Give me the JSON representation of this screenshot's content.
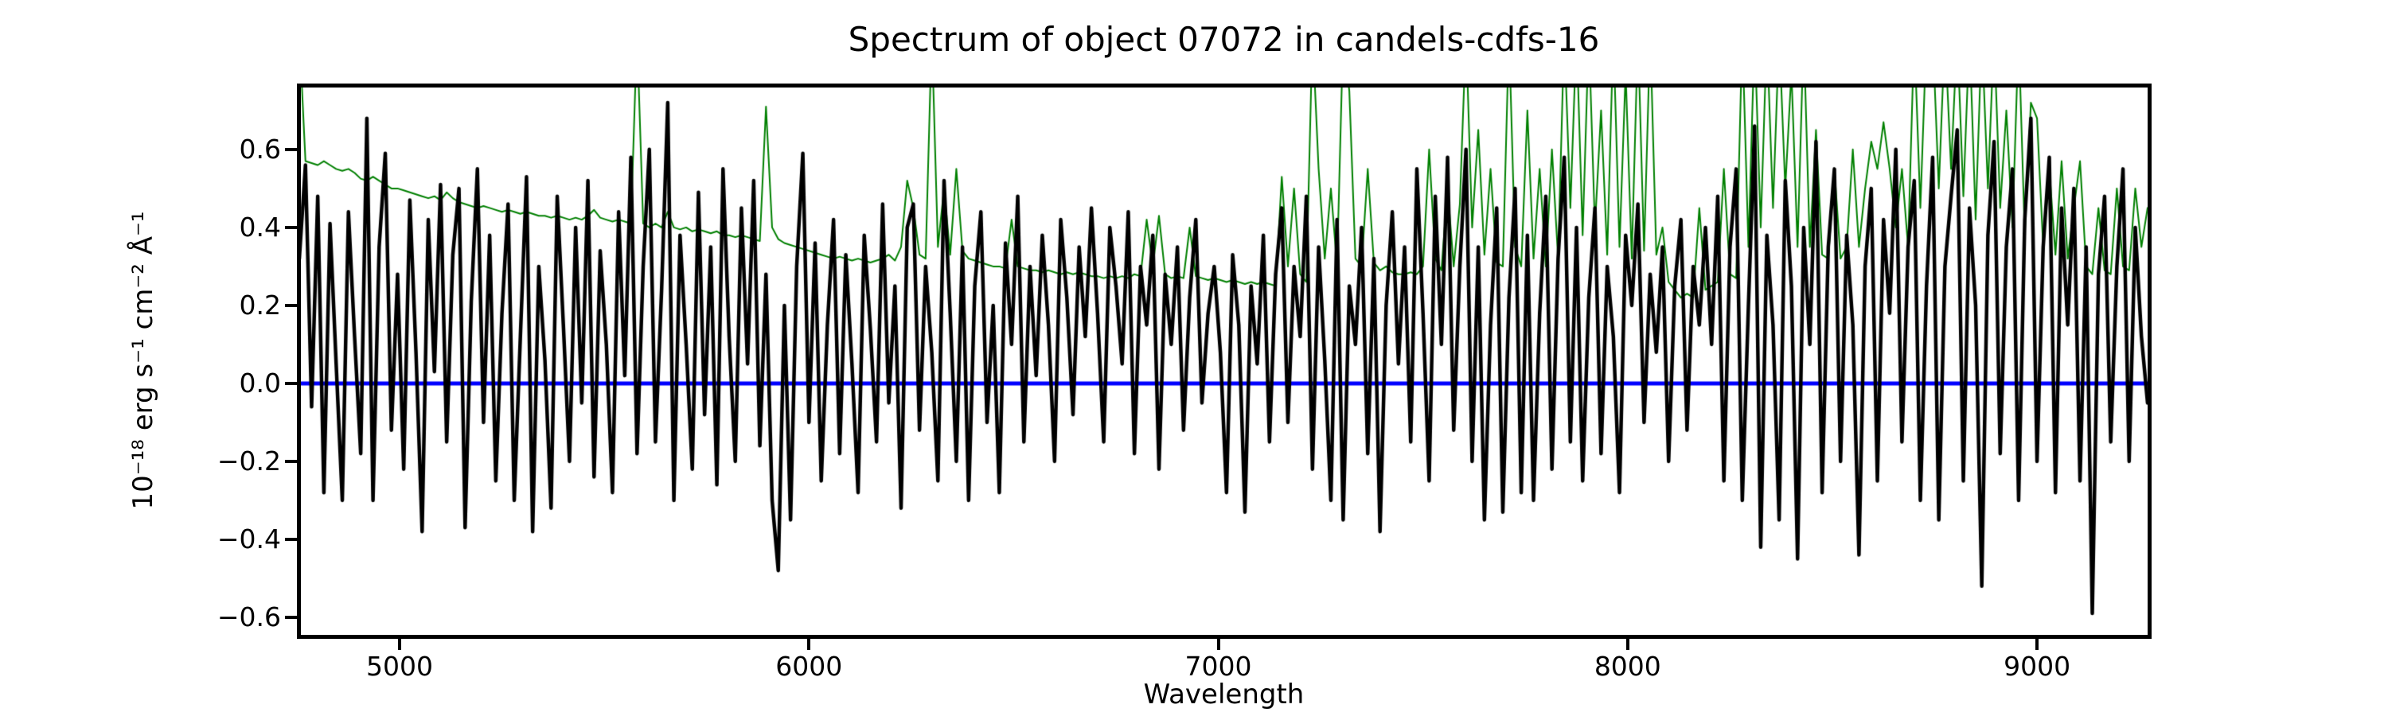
{
  "figure": {
    "title": "Spectrum of object 07072 in candels-cdfs-16",
    "xlabel": "Wavelength",
    "ylabel": "10⁻¹⁸ erg s⁻¹ cm⁻² Å⁻¹"
  },
  "colors": {
    "flux": "#000000",
    "sky_noise": "#008000",
    "zero_line": "#0000ff",
    "background": "#ffffff",
    "text": "#000000"
  },
  "chart_data": {
    "type": "line",
    "title": "Spectrum of object 07072 in candels-cdfs-16",
    "xlabel": "Wavelength",
    "ylabel": "10^-18 erg s^-1 cm^-2 A^-1",
    "grid": false,
    "legend": null,
    "xlim": [
      4753,
      9274
    ],
    "ylim": [
      -0.649,
      0.765
    ],
    "x_ticks": [
      {
        "value": 5000,
        "label": "5000"
      },
      {
        "value": 6000,
        "label": "6000"
      },
      {
        "value": 7000,
        "label": "7000"
      },
      {
        "value": 8000,
        "label": "8000"
      },
      {
        "value": 9000,
        "label": "9000"
      }
    ],
    "y_ticks": [
      {
        "value": 0.6,
        "label": "0.6"
      },
      {
        "value": 0.4,
        "label": "0.4"
      },
      {
        "value": 0.2,
        "label": "0.2"
      },
      {
        "value": 0.0,
        "label": "0.0"
      },
      {
        "value": -0.2,
        "label": "−0.2"
      },
      {
        "value": -0.4,
        "label": "−0.4"
      },
      {
        "value": -0.6,
        "label": "−0.6"
      }
    ],
    "x_start": 4755,
    "x_step": 15,
    "series": [
      {
        "name": "zero-line",
        "color": "#0000ff",
        "linewidth": 5,
        "hline": 0.0
      },
      {
        "name": "sky-noise-spectrum",
        "color": "#008000",
        "linewidth": 2,
        "values": [
          0.9,
          0.57,
          0.565,
          0.56,
          0.57,
          0.56,
          0.55,
          0.545,
          0.55,
          0.54,
          0.525,
          0.52,
          0.53,
          0.52,
          0.51,
          0.5,
          0.5,
          0.495,
          0.49,
          0.485,
          0.48,
          0.475,
          0.48,
          0.47,
          0.49,
          0.475,
          0.465,
          0.46,
          0.455,
          0.45,
          0.455,
          0.45,
          0.445,
          0.44,
          0.445,
          0.44,
          0.435,
          0.44,
          0.435,
          0.43,
          0.43,
          0.425,
          0.43,
          0.425,
          0.42,
          0.425,
          0.42,
          0.43,
          0.445,
          0.425,
          0.42,
          0.415,
          0.42,
          0.415,
          0.41,
          0.9,
          0.41,
          0.4,
          0.41,
          0.4,
          0.44,
          0.4,
          0.395,
          0.4,
          0.39,
          0.395,
          0.39,
          0.385,
          0.39,
          0.38,
          0.38,
          0.375,
          0.38,
          0.375,
          0.37,
          0.365,
          0.71,
          0.4,
          0.37,
          0.36,
          0.355,
          0.35,
          0.345,
          0.34,
          0.335,
          0.33,
          0.325,
          0.32,
          0.325,
          0.32,
          0.315,
          0.32,
          0.315,
          0.31,
          0.315,
          0.32,
          0.33,
          0.315,
          0.35,
          0.52,
          0.45,
          0.33,
          0.32,
          0.9,
          0.35,
          0.5,
          0.33,
          0.55,
          0.34,
          0.32,
          0.315,
          0.31,
          0.305,
          0.3,
          0.3,
          0.295,
          0.42,
          0.3,
          0.295,
          0.29,
          0.29,
          0.285,
          0.29,
          0.285,
          0.28,
          0.285,
          0.28,
          0.285,
          0.28,
          0.275,
          0.275,
          0.27,
          0.275,
          0.27,
          0.275,
          0.27,
          0.28,
          0.275,
          0.42,
          0.3,
          0.43,
          0.28,
          0.27,
          0.275,
          0.27,
          0.4,
          0.275,
          0.27,
          0.265,
          0.27,
          0.265,
          0.26,
          0.265,
          0.26,
          0.255,
          0.26,
          0.255,
          0.26,
          0.255,
          0.25,
          0.53,
          0.3,
          0.5,
          0.28,
          0.26,
          0.9,
          0.55,
          0.32,
          0.5,
          0.3,
          0.9,
          0.75,
          0.32,
          0.3,
          0.55,
          0.31,
          0.29,
          0.3,
          0.285,
          0.28,
          0.28,
          0.285,
          0.28,
          0.3,
          0.6,
          0.32,
          0.29,
          0.5,
          0.3,
          0.46,
          0.9,
          0.4,
          0.65,
          0.33,
          0.55,
          0.31,
          0.3,
          0.9,
          0.35,
          0.3,
          0.7,
          0.32,
          0.55,
          0.3,
          0.6,
          0.32,
          0.9,
          0.45,
          0.9,
          0.38,
          0.9,
          0.4,
          0.7,
          0.33,
          0.9,
          0.35,
          0.8,
          0.32,
          0.9,
          0.34,
          0.9,
          0.33,
          0.4,
          0.26,
          0.24,
          0.22,
          0.23,
          0.22,
          0.45,
          0.24,
          0.25,
          0.26,
          0.55,
          0.28,
          0.27,
          0.9,
          0.35,
          0.9,
          0.4,
          0.9,
          0.45,
          0.9,
          0.5,
          0.8,
          0.35,
          0.9,
          0.35,
          0.65,
          0.33,
          0.32,
          0.55,
          0.32,
          0.35,
          0.6,
          0.35,
          0.5,
          0.62,
          0.55,
          0.67,
          0.55,
          0.4,
          0.55,
          0.35,
          0.9,
          0.45,
          0.9,
          0.9,
          0.5,
          0.9,
          0.55,
          0.9,
          0.48,
          0.9,
          0.42,
          0.9,
          0.5,
          0.9,
          0.45,
          0.7,
          0.4,
          0.9,
          0.38,
          0.72,
          0.68,
          0.35,
          0.55,
          0.33,
          0.57,
          0.32,
          0.45,
          0.57,
          0.3,
          0.28,
          0.45,
          0.29,
          0.28,
          0.5,
          0.3,
          0.29,
          0.5,
          0.35,
          0.45
        ]
      },
      {
        "name": "flux-spectrum",
        "color": "#000000",
        "linewidth": 4.5,
        "values": [
          0.32,
          0.56,
          -0.06,
          0.48,
          -0.28,
          0.41,
          0.05,
          -0.3,
          0.44,
          0.12,
          -0.18,
          0.68,
          -0.3,
          0.35,
          0.59,
          -0.12,
          0.28,
          -0.22,
          0.47,
          0.08,
          -0.38,
          0.42,
          0.03,
          0.51,
          -0.15,
          0.33,
          0.5,
          -0.37,
          0.21,
          0.55,
          -0.1,
          0.38,
          -0.25,
          0.18,
          0.46,
          -0.3,
          0.12,
          0.53,
          -0.38,
          0.3,
          0.06,
          -0.32,
          0.48,
          0.15,
          -0.2,
          0.4,
          -0.05,
          0.52,
          -0.24,
          0.34,
          0.1,
          -0.28,
          0.44,
          0.02,
          0.58,
          -0.18,
          0.3,
          0.6,
          -0.15,
          0.24,
          0.72,
          -0.3,
          0.38,
          0.1,
          -0.22,
          0.49,
          -0.08,
          0.35,
          -0.26,
          0.55,
          0.12,
          -0.2,
          0.45,
          0.05,
          0.52,
          -0.16,
          0.28,
          -0.3,
          -0.48,
          0.2,
          -0.35,
          0.3,
          0.59,
          -0.1,
          0.36,
          -0.25,
          0.15,
          0.42,
          -0.18,
          0.33,
          0.05,
          -0.28,
          0.38,
          0.14,
          -0.15,
          0.46,
          -0.05,
          0.25,
          -0.32,
          0.4,
          0.46,
          -0.12,
          0.3,
          0.08,
          -0.25,
          0.52,
          0.18,
          -0.2,
          0.35,
          -0.3,
          0.25,
          0.44,
          -0.1,
          0.2,
          -0.28,
          0.36,
          0.1,
          0.48,
          -0.15,
          0.3,
          0.02,
          0.38,
          0.15,
          -0.2,
          0.42,
          0.22,
          -0.08,
          0.35,
          0.12,
          0.45,
          0.18,
          -0.15,
          0.4,
          0.25,
          0.05,
          0.44,
          -0.18,
          0.3,
          0.15,
          0.38,
          -0.22,
          0.28,
          0.1,
          0.35,
          -0.12,
          0.22,
          0.42,
          -0.05,
          0.18,
          0.3,
          0.08,
          -0.28,
          0.33,
          0.15,
          -0.33,
          0.25,
          0.05,
          0.38,
          -0.15,
          0.28,
          0.45,
          -0.1,
          0.3,
          0.12,
          0.48,
          -0.22,
          0.35,
          0.06,
          -0.3,
          0.42,
          -0.35,
          0.25,
          0.1,
          0.4,
          -0.18,
          0.32,
          -0.38,
          0.2,
          0.44,
          0.05,
          0.35,
          -0.15,
          0.55,
          0.18,
          -0.25,
          0.48,
          0.1,
          0.58,
          -0.12,
          0.3,
          0.6,
          -0.2,
          0.35,
          -0.35,
          0.15,
          0.45,
          -0.33,
          0.22,
          0.5,
          -0.28,
          0.38,
          -0.3,
          0.18,
          0.48,
          -0.22,
          0.32,
          0.58,
          -0.15,
          0.4,
          -0.25,
          0.22,
          0.45,
          -0.18,
          0.3,
          0.12,
          -0.28,
          0.38,
          0.2,
          0.46,
          -0.1,
          0.28,
          0.08,
          0.35,
          -0.2,
          0.25,
          0.42,
          -0.12,
          0.3,
          0.15,
          0.4,
          0.1,
          0.48,
          -0.25,
          0.35,
          0.55,
          -0.3,
          0.2,
          0.66,
          -0.42,
          0.38,
          0.15,
          -0.35,
          0.52,
          0.25,
          -0.45,
          0.4,
          0.1,
          0.62,
          -0.28,
          0.35,
          0.55,
          -0.2,
          0.38,
          0.15,
          -0.44,
          0.3,
          0.5,
          -0.25,
          0.42,
          0.18,
          0.6,
          -0.15,
          0.35,
          0.52,
          -0.3,
          0.25,
          0.58,
          -0.35,
          0.3,
          0.48,
          0.65,
          -0.25,
          0.45,
          0.2,
          -0.52,
          0.38,
          0.62,
          -0.18,
          0.35,
          0.55,
          -0.3,
          0.42,
          0.68,
          -0.2,
          0.35,
          0.58,
          -0.28,
          0.45,
          0.15,
          0.5,
          -0.25,
          0.35,
          -0.59,
          0.28,
          0.48,
          -0.15,
          0.3,
          0.55,
          -0.2,
          0.4,
          0.12,
          -0.05
        ]
      }
    ]
  }
}
